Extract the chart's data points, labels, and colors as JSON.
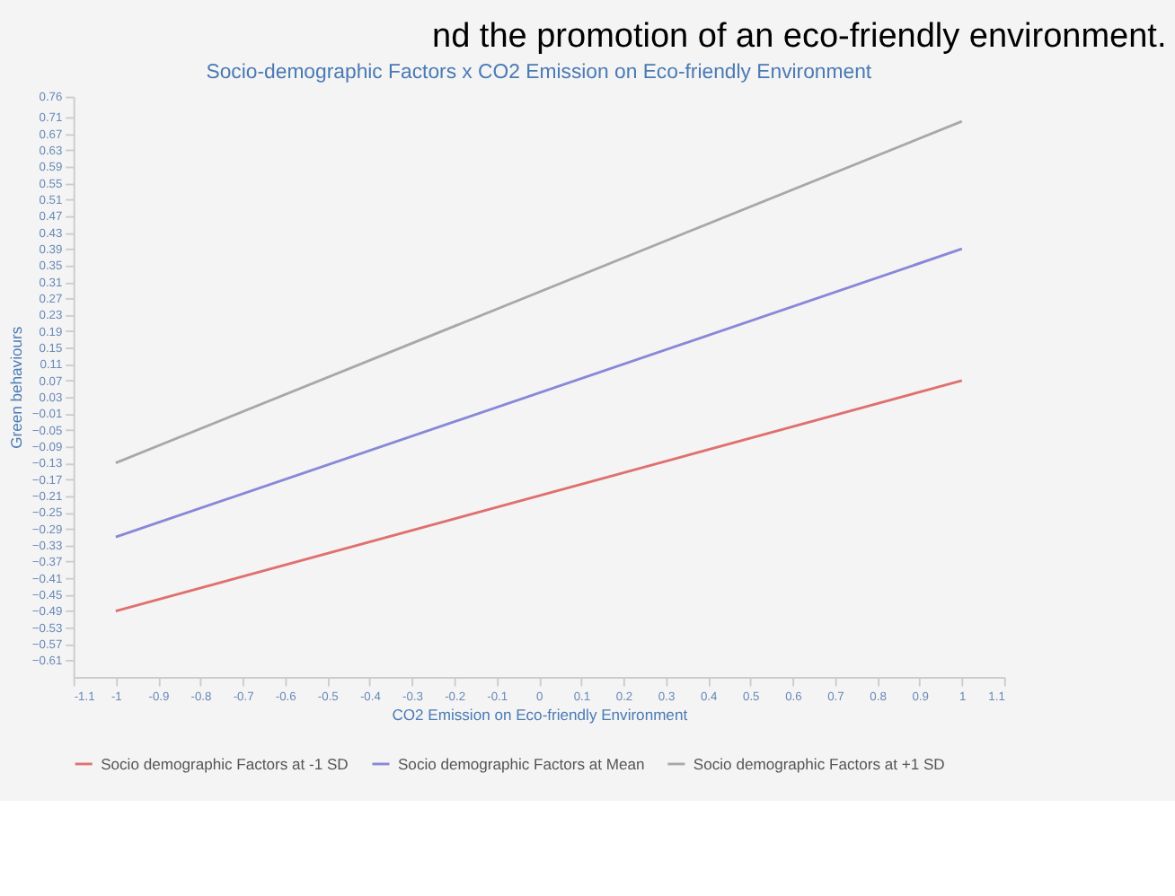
{
  "chart_data": {
    "type": "line",
    "title": "Socio-demographic Factors x CO2 Emission on Eco-friendly Environment",
    "xlabel": "CO2 Emission on Eco-friendly Environment",
    "ylabel": "Green behaviours",
    "annotations": [
      "nd the promotion of an eco-friendly environment."
    ],
    "x": [
      -1,
      1
    ],
    "series": [
      {
        "name": "Socio demographic Factors at -1 SD",
        "color": "#e07070",
        "values": [
          -0.49,
          0.07
        ]
      },
      {
        "name": "Socio demographic Factors at Mean",
        "color": "#8888d8",
        "values": [
          -0.31,
          0.39
        ]
      },
      {
        "name": "Socio demographic Factors at +1 SD",
        "color": "#a8a8a8",
        "values": [
          -0.13,
          0.7
        ]
      }
    ],
    "xlim": [
      -1.1,
      1.1
    ],
    "xticks": [
      -1.1,
      -1,
      -0.9,
      -0.8,
      -0.7,
      -0.6,
      -0.5,
      -0.4,
      -0.3,
      -0.2,
      -0.1,
      0,
      0.1,
      0.2,
      0.3,
      0.4,
      0.5,
      0.6,
      0.7,
      0.8,
      0.9,
      1,
      1.1
    ],
    "ylim": [
      -0.65,
      0.76
    ],
    "yticks": [
      0.76,
      0.71,
      0.67,
      0.63,
      0.59,
      0.55,
      0.51,
      0.47,
      0.43,
      0.39,
      0.35,
      0.31,
      0.27,
      0.23,
      0.19,
      0.15,
      0.11,
      0.07,
      0.03,
      -0.01,
      -0.05,
      -0.09,
      -0.13,
      -0.17,
      -0.21,
      -0.25,
      -0.29,
      -0.33,
      -0.37,
      -0.41,
      -0.45,
      -0.49,
      -0.53,
      -0.57,
      -0.61
    ],
    "grid": false,
    "legend": "bottom",
    "marker": "none",
    "line_style": "solid"
  }
}
